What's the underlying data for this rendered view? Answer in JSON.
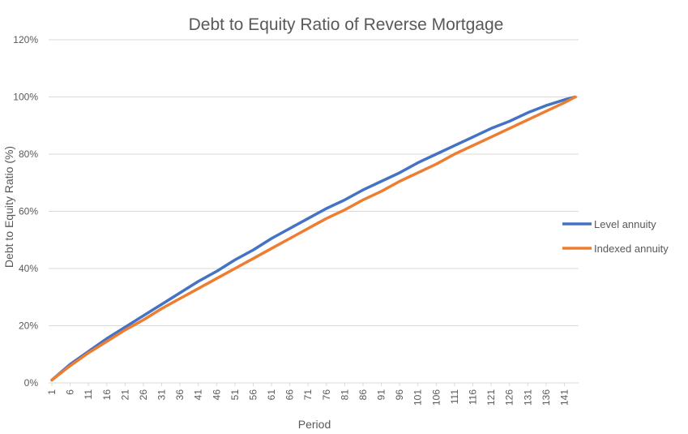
{
  "chart_data": {
    "type": "line",
    "title": "Debt to Equity Ratio of Reverse Mortgage",
    "xlabel": "Period",
    "ylabel": "Debt to Equity Ratio (%)",
    "x_range": [
      1,
      144
    ],
    "x_tick_labels": [
      "1",
      "6",
      "11",
      "16",
      "21",
      "26",
      "31",
      "36",
      "41",
      "46",
      "51",
      "56",
      "61",
      "66",
      "71",
      "76",
      "81",
      "86",
      "91",
      "96",
      "101",
      "106",
      "111",
      "116",
      "121",
      "126",
      "131",
      "136",
      "141"
    ],
    "ylim": [
      0,
      120
    ],
    "y_ticks": [
      0,
      20,
      40,
      60,
      80,
      100,
      120
    ],
    "y_tick_labels": [
      "0%",
      "20%",
      "40%",
      "60%",
      "80%",
      "100%",
      "120%"
    ],
    "grid": true,
    "legend_position": "right",
    "series": [
      {
        "name": "Level annuity",
        "color": "#4472c4",
        "x": [
          1,
          6,
          11,
          16,
          21,
          26,
          31,
          36,
          41,
          46,
          51,
          56,
          61,
          66,
          71,
          76,
          81,
          86,
          91,
          96,
          101,
          106,
          111,
          116,
          121,
          126,
          131,
          136,
          141,
          144
        ],
        "values": [
          1,
          6.5,
          11,
          15.5,
          19.5,
          23.5,
          27.5,
          31.5,
          35.5,
          39,
          43,
          46.5,
          50.5,
          54,
          57.5,
          61,
          64,
          67.5,
          70.5,
          73.5,
          77,
          80,
          83,
          86,
          89,
          91.5,
          94.5,
          97,
          99,
          100
        ]
      },
      {
        "name": "Indexed annuity",
        "color": "#ed7d31",
        "x": [
          1,
          6,
          11,
          16,
          21,
          26,
          31,
          36,
          41,
          46,
          51,
          56,
          61,
          66,
          71,
          76,
          81,
          86,
          91,
          96,
          101,
          106,
          111,
          116,
          121,
          126,
          131,
          136,
          141,
          144
        ],
        "values": [
          1,
          6,
          10.5,
          14.5,
          18.5,
          22,
          26,
          29.5,
          33,
          36.5,
          40,
          43.5,
          47,
          50.5,
          54,
          57.5,
          60.5,
          64,
          67,
          70.5,
          73.5,
          76.5,
          80,
          83,
          86,
          89,
          92,
          95,
          98,
          100
        ]
      }
    ]
  }
}
